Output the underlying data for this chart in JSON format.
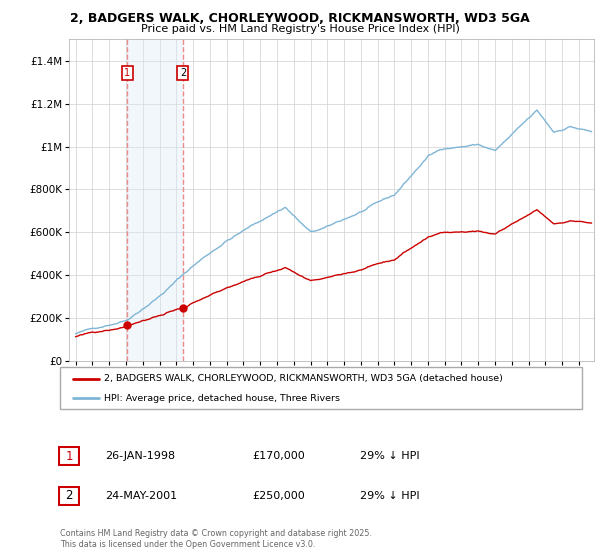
{
  "title": "2, BADGERS WALK, CHORLEYWOOD, RICKMANSWORTH, WD3 5GA",
  "subtitle": "Price paid vs. HM Land Registry's House Price Index (HPI)",
  "legend_line1": "2, BADGERS WALK, CHORLEYWOOD, RICKMANSWORTH, WD3 5GA (detached house)",
  "legend_line2": "HPI: Average price, detached house, Three Rivers",
  "transaction1_date": "26-JAN-1998",
  "transaction1_price": "£170,000",
  "transaction1_hpi": "29% ↓ HPI",
  "transaction2_date": "24-MAY-2001",
  "transaction2_price": "£250,000",
  "transaction2_hpi": "29% ↓ HPI",
  "footer": "Contains HM Land Registry data © Crown copyright and database right 2025.\nThis data is licensed under the Open Government Licence v3.0.",
  "hpi_color": "#7fb5d5",
  "price_color": "#cc0000",
  "vline_color": "#e88080",
  "shade_color": "#daeaf5",
  "ylim": [
    0,
    1500000
  ],
  "yticks": [
    0,
    200000,
    400000,
    600000,
    800000,
    1000000,
    1200000,
    1400000
  ],
  "transaction1_year": 1998.07,
  "transaction1_price_val": 170000,
  "transaction2_year": 2001.39,
  "transaction2_price_val": 250000,
  "box1_color": "#cc0000",
  "box2_color": "#cc0000"
}
